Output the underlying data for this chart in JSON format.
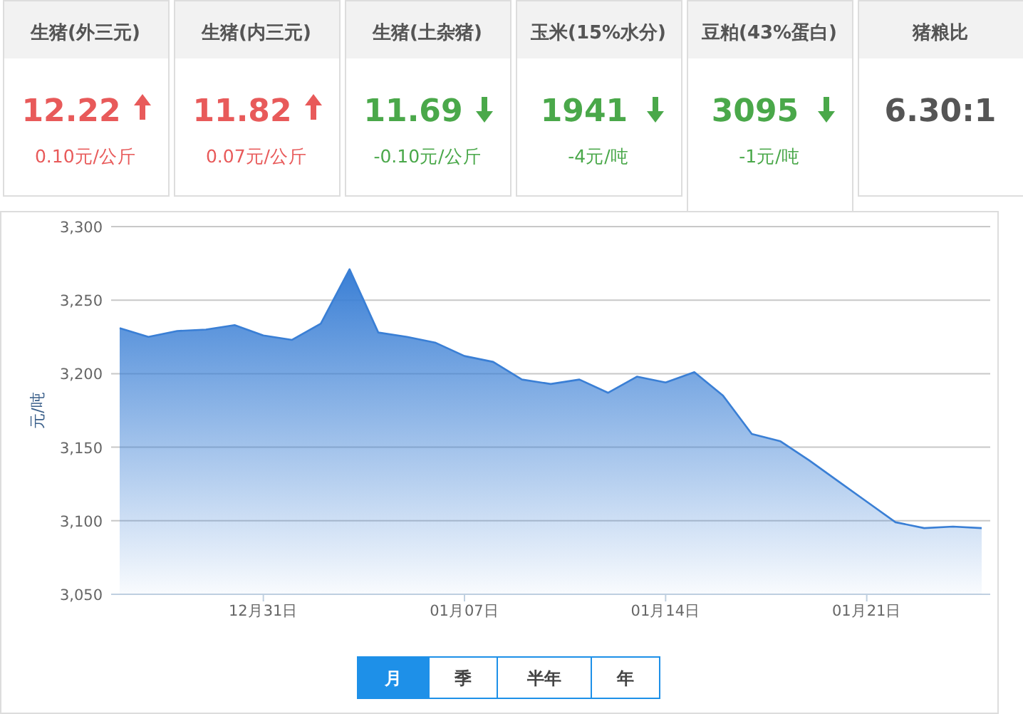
{
  "chart_data": [
    {
      "type": "other",
      "categories": [
        "生猪(外三元)",
        "生猪(内三元)",
        "生猪(土杂猪)",
        "玉米(15%水分)",
        "豆粕(43%蛋白)",
        "猪粮比"
      ],
      "value_labels": [
        "12.22",
        "11.82",
        "11.69",
        "1941",
        "3095",
        "6.30:1"
      ],
      "colors": [
        "#e85a5a",
        "#e85a5a",
        "#4aa84a",
        "#4aa84a",
        "#4aa84a",
        "#555555"
      ],
      "annotations": [
        "0.10元/公斤",
        "0.07元/公斤",
        "-0.10元/公斤",
        "-4元/吨",
        "-1元/吨"
      ]
    },
    {
      "type": "area",
      "ylabel": "元/吨",
      "categories": [
        null,
        null,
        null,
        null,
        null,
        "12月31日",
        null,
        null,
        null,
        null,
        null,
        null,
        "01月07日",
        null,
        null,
        null,
        null,
        null,
        null,
        "01月14日",
        null,
        null,
        null,
        null,
        null,
        null,
        "01月21日",
        null,
        null,
        null,
        null
      ],
      "values": [
        3231,
        3225,
        3229,
        3230,
        3233,
        3226,
        3223,
        3234,
        3271,
        3228,
        3225,
        3221,
        3212,
        3208,
        3196,
        3193,
        3196,
        3187,
        3198,
        3194,
        3201,
        3185,
        3159,
        3154,
        3141,
        3127,
        3113,
        3099,
        3095,
        3096,
        3095
      ],
      "color": "#3a7fd5",
      "ylim": [
        3050,
        3300
      ],
      "yticks": [
        {
          "value": 3050,
          "label": "3,050"
        },
        {
          "value": 3100,
          "label": "3,100"
        },
        {
          "value": 3150,
          "label": "3,150"
        },
        {
          "value": 3200,
          "label": "3,200"
        },
        {
          "value": 3250,
          "label": "3,250"
        },
        {
          "value": 3300,
          "label": "3,300"
        }
      ],
      "grid": "y",
      "annotations": [
        "月",
        "季",
        "半年",
        "年"
      ]
    }
  ]
}
